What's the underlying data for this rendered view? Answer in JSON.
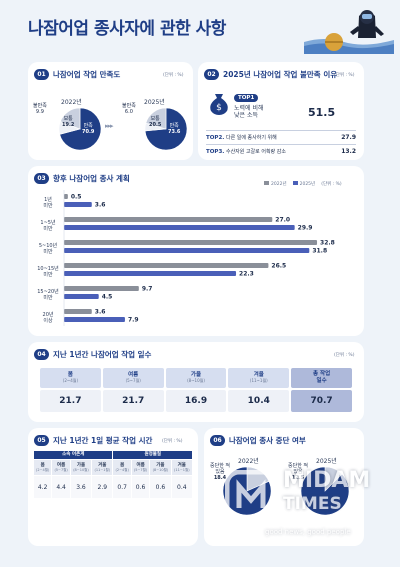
{
  "title": "나잠어업 종사자에 관한 사항",
  "unit": "(단위 : %)",
  "sec1": {
    "num": "01",
    "heading": "나잠어업 작업 만족도",
    "pie2022": {
      "year": "2022년",
      "bad_label": "불만족",
      "bad": "9.9",
      "mid_label": "보통",
      "mid": "19.2",
      "good_label": "만족",
      "good": "70.9"
    },
    "pie2025": {
      "year": "2025년",
      "bad_label": "불만족",
      "bad": "6.0",
      "mid_label": "보통",
      "mid": "20.5",
      "good_label": "만족",
      "good": "73.6"
    }
  },
  "sec2": {
    "num": "02",
    "heading": "2025년 나잠어업 작업 불만족 이유",
    "top1_badge": "TOP1",
    "top1_line1": "노력에 비해",
    "top1_line2": "낮은 소득",
    "top1_value": "51.5",
    "rows": [
      {
        "rank": "TOP2.",
        "label": "다른 일에 종사하기 위해",
        "value": "27.9"
      },
      {
        "rank": "TOP3.",
        "label": "수산자원 고갈로 어획량 감소",
        "value": "13.2"
      }
    ]
  },
  "sec3": {
    "num": "03",
    "heading": "향후 나잠어업 종사 계획",
    "legend": [
      "2022년",
      "2025년"
    ],
    "categories": [
      [
        "1년",
        "미만"
      ],
      [
        "1~5년",
        "미만"
      ],
      [
        "5~10년",
        "미만"
      ],
      [
        "10~15년",
        "미만"
      ],
      [
        "15~20년",
        "미만"
      ],
      [
        "20년",
        "이상"
      ]
    ]
  },
  "chart_data": {
    "type": "bar",
    "categories": [
      "1년 미만",
      "1~5년 미만",
      "5~10년 미만",
      "10~15년 미만",
      "15~20년 미만",
      "20년 이상"
    ],
    "series": [
      {
        "name": "2022년",
        "values": [
          0.5,
          27.0,
          32.8,
          26.5,
          9.7,
          3.6
        ],
        "color": "#8a8f99"
      },
      {
        "name": "2025년",
        "values": [
          3.6,
          29.9,
          31.8,
          22.3,
          4.5,
          7.9
        ],
        "color": "#4a5fb8"
      }
    ],
    "value_labels": {
      "2022년": [
        "0.5",
        "27.0",
        "32.8",
        "26.5",
        "9.7",
        "3.6"
      ],
      "2025년": [
        "3.6",
        "29.9",
        "31.8",
        "22.3",
        "4.5",
        "7.9"
      ]
    },
    "orientation": "horizontal",
    "legend_position": "top-right"
  },
  "sec4": {
    "num": "04",
    "heading": "지난 1년간 나잠어업 작업 일수",
    "headers": [
      {
        "label": "봄",
        "sub": "(2~4월)"
      },
      {
        "label": "여름",
        "sub": "(5~7월)"
      },
      {
        "label": "가을",
        "sub": "(8~10월)"
      },
      {
        "label": "겨울",
        "sub": "(11~1월)"
      },
      {
        "label": "총 작업",
        "sub": "일수"
      }
    ],
    "values": [
      "21.7",
      "21.7",
      "16.9",
      "10.4",
      "70.7"
    ]
  },
  "sec5": {
    "num": "05",
    "heading": "지난 1년간 1일 평균 작업 시간",
    "groups": [
      "소속 어촌계",
      "원정물질"
    ],
    "headers": [
      {
        "label": "봄",
        "sub": "(2~4월)"
      },
      {
        "label": "여름",
        "sub": "(5~7월)"
      },
      {
        "label": "가을",
        "sub": "(8~10월)"
      },
      {
        "label": "겨울",
        "sub": "(11~1월)"
      },
      {
        "label": "봄",
        "sub": "(2~4월)"
      },
      {
        "label": "여름",
        "sub": "(5~7월)"
      },
      {
        "label": "가을",
        "sub": "(8~10월)"
      },
      {
        "label": "겨울",
        "sub": "(11~1월)"
      }
    ],
    "values": [
      "4.2",
      "4.4",
      "3.6",
      "2.9",
      "0.7",
      "0.6",
      "0.6",
      "0.4"
    ]
  },
  "sec6": {
    "num": "06",
    "heading": "나잠어업 종사 중단 여부",
    "pie2022": {
      "year": "2022년",
      "label1": "중단한 적",
      "label2": "있음",
      "value": "18.4"
    },
    "pie2025": {
      "year": "2025년",
      "label1": "중단한 적",
      "label2": "있음",
      "value": "12.5"
    }
  },
  "watermark": {
    "brand": "MIDAM",
    "brand2": "TIMES",
    "tagline": "good news, good people"
  },
  "colors": {
    "primary": "#1f3e86",
    "bar2022": "#8a8f99",
    "bar2025": "#4a5fb8",
    "pieLight": "#c9d0df"
  }
}
